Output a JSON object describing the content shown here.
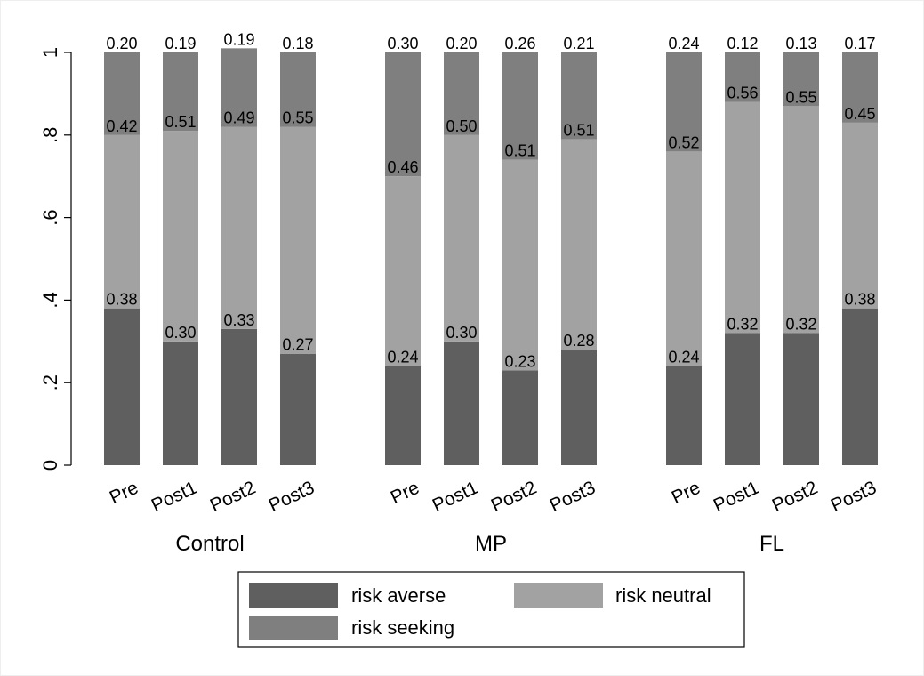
{
  "chart_data": {
    "type": "bar",
    "stacked": true,
    "ylim": [
      0,
      1
    ],
    "yticks": [
      {
        "value": 0,
        "label": "0"
      },
      {
        "value": 0.2,
        "label": ".2"
      },
      {
        "value": 0.4,
        "label": ".4"
      },
      {
        "value": 0.6,
        "label": ".6"
      },
      {
        "value": 0.8,
        "label": ".8"
      },
      {
        "value": 1,
        "label": "1"
      }
    ],
    "grid": false,
    "legend_position": "bottom",
    "groups": [
      {
        "name": "Control",
        "categories": [
          "Pre",
          "Post1",
          "Post2",
          "Post3"
        ]
      },
      {
        "name": "MP",
        "categories": [
          "Pre",
          "Post1",
          "Post2",
          "Post3"
        ]
      },
      {
        "name": "FL",
        "categories": [
          "Pre",
          "Post1",
          "Post2",
          "Post3"
        ]
      }
    ],
    "series": [
      {
        "name": "risk averse",
        "color": "#5f5f5f",
        "values": [
          0.38,
          0.3,
          0.33,
          0.27,
          0.24,
          0.3,
          0.23,
          0.28,
          0.24,
          0.32,
          0.32,
          0.38
        ],
        "labels": [
          "0.38",
          "0.30",
          "0.33",
          "0.27",
          "0.24",
          "0.30",
          "0.23",
          "0.28",
          "0.24",
          "0.32",
          "0.32",
          "0.38"
        ]
      },
      {
        "name": "risk neutral",
        "color": "#a2a2a2",
        "values": [
          0.42,
          0.51,
          0.49,
          0.55,
          0.46,
          0.5,
          0.51,
          0.51,
          0.52,
          0.56,
          0.55,
          0.45
        ],
        "labels": [
          "0.42",
          "0.51",
          "0.49",
          "0.55",
          "0.46",
          "0.50",
          "0.51",
          "0.51",
          "0.52",
          "0.56",
          "0.55",
          "0.45"
        ]
      },
      {
        "name": "risk seeking",
        "color": "#7f7f7f",
        "values": [
          0.2,
          0.19,
          0.19,
          0.18,
          0.3,
          0.2,
          0.26,
          0.21,
          0.24,
          0.12,
          0.13,
          0.17
        ],
        "labels": [
          "0.20",
          "0.19",
          "0.19",
          "0.18",
          "0.30",
          "0.20",
          "0.26",
          "0.21",
          "0.24",
          "0.12",
          "0.13",
          "0.17"
        ]
      }
    ]
  }
}
